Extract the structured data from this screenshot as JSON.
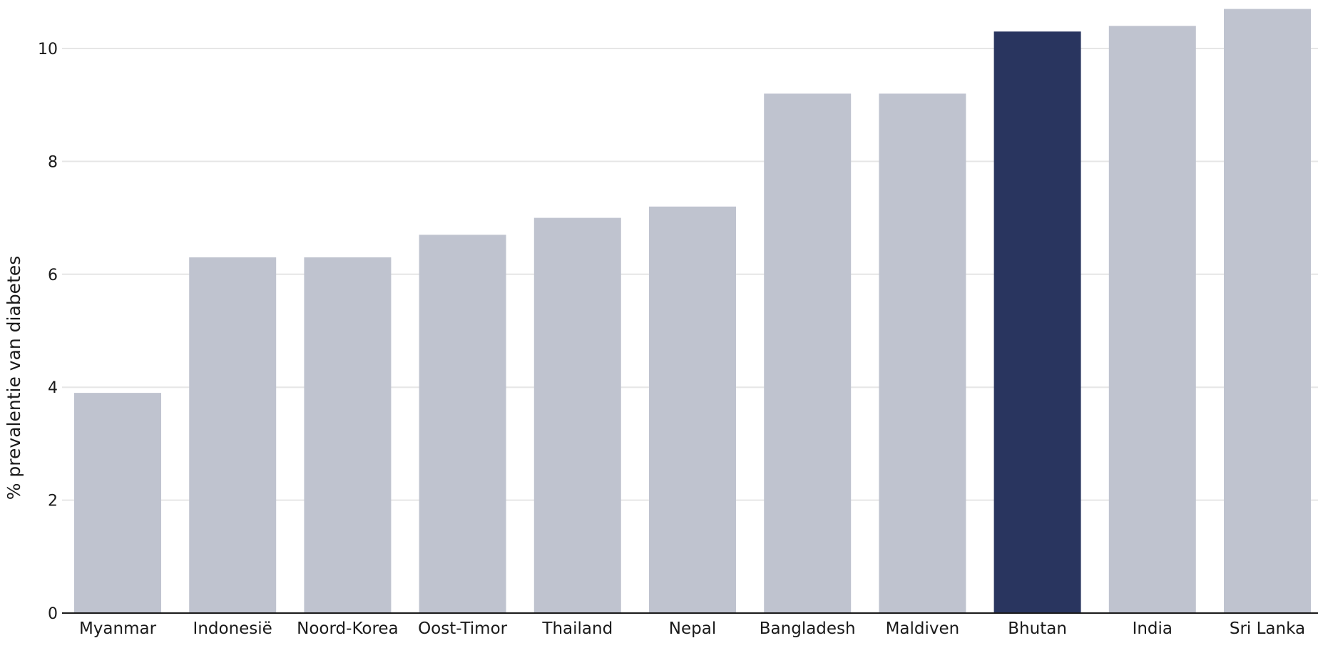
{
  "chart_data": {
    "type": "bar",
    "ylabel": "% prevalentie van diabetes",
    "xlabel": "",
    "categories": [
      "Myanmar",
      "Indonesië",
      "Noord-Korea",
      "Oost-Timor",
      "Thailand",
      "Nepal",
      "Bangladesh",
      "Maldiven",
      "Bhutan",
      "India",
      "Sri Lanka"
    ],
    "values": [
      3.9,
      6.3,
      6.3,
      6.7,
      7.0,
      7.2,
      9.2,
      9.2,
      10.3,
      10.4,
      10.7
    ],
    "highlight": "Bhutan",
    "ylim": [
      0,
      10.8
    ],
    "yticks": [
      0,
      2,
      4,
      6,
      8,
      10
    ],
    "grid": true,
    "colors": {
      "bar": "#bfc3cf",
      "highlight": "#29355f",
      "grid": "#e6e6e6",
      "axis": "#1a1a1a"
    }
  }
}
